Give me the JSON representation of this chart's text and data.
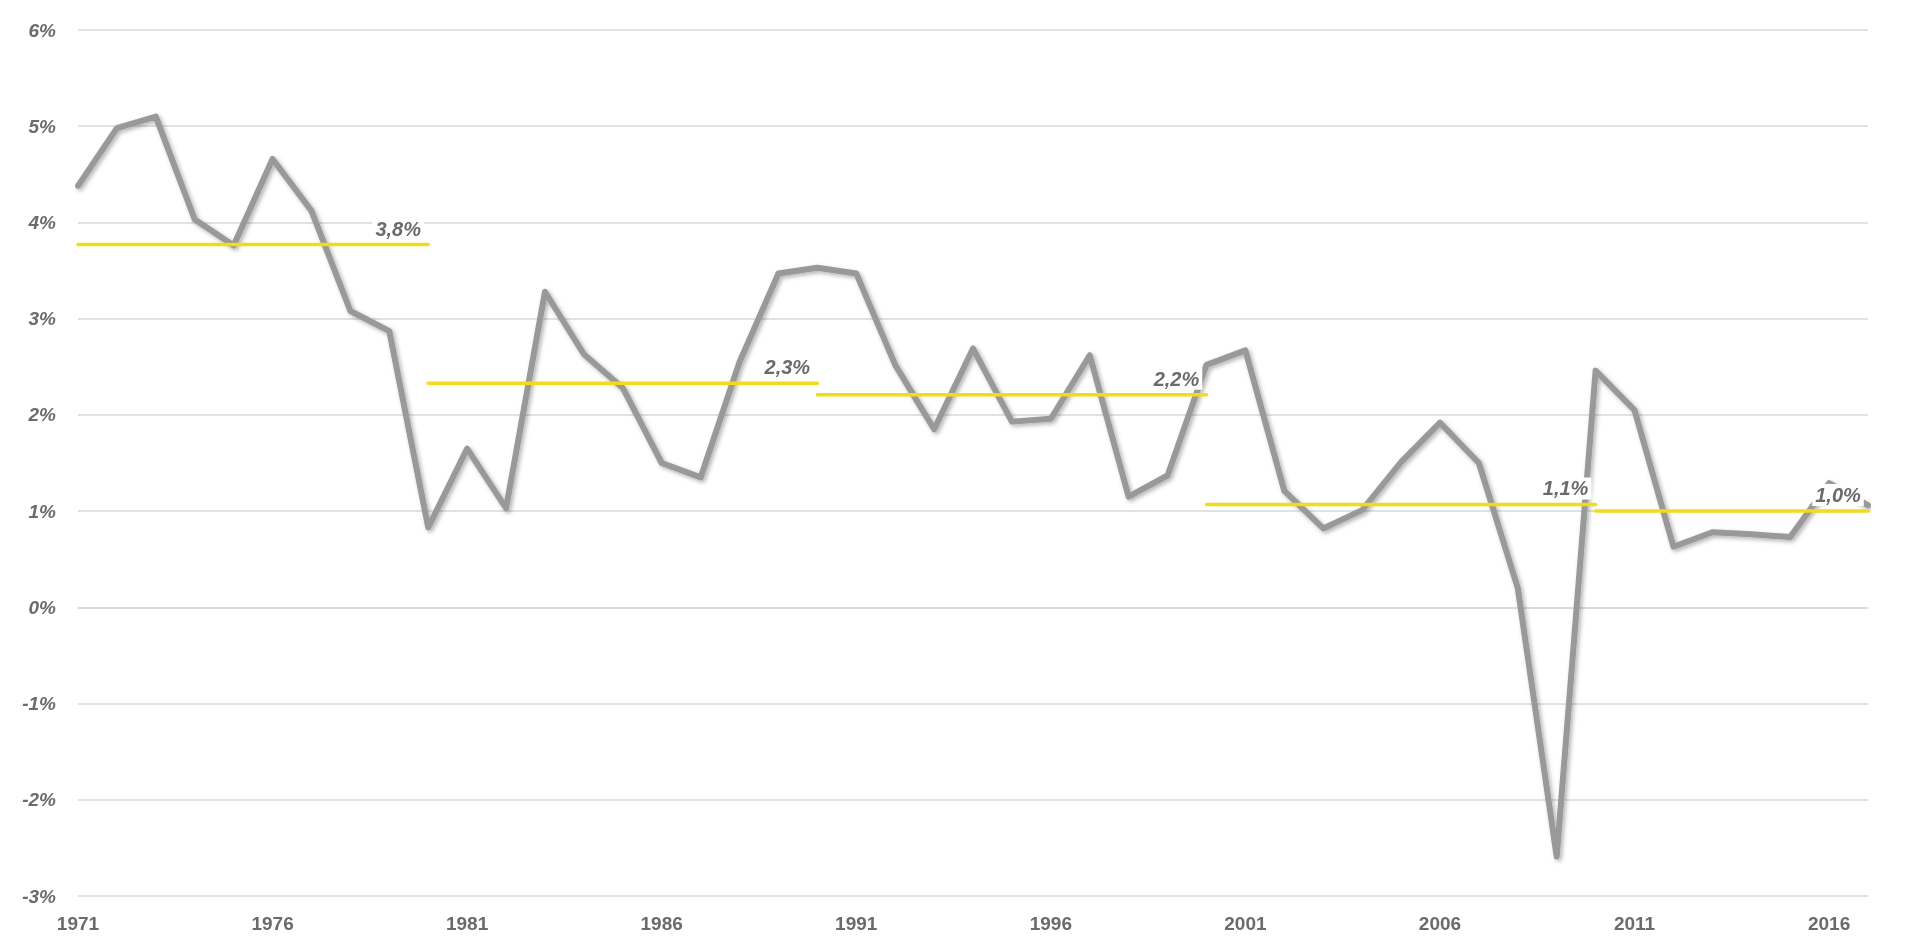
{
  "chart_data": {
    "type": "line",
    "x": [
      1971,
      1972,
      1973,
      1974,
      1975,
      1976,
      1977,
      1978,
      1979,
      1980,
      1981,
      1982,
      1983,
      1984,
      1985,
      1986,
      1987,
      1988,
      1989,
      1990,
      1991,
      1992,
      1993,
      1994,
      1995,
      1996,
      1997,
      1998,
      1999,
      2000,
      2001,
      2002,
      2003,
      2004,
      2005,
      2006,
      2007,
      2008,
      2009,
      2010,
      2011,
      2012,
      2013,
      2014,
      2015,
      2016,
      2017
    ],
    "xlim": [
      1971,
      2017
    ],
    "xticks": [
      1971,
      1976,
      1981,
      1986,
      1991,
      1996,
      2001,
      2006,
      2011,
      2016
    ],
    "ylim": [
      -3,
      6
    ],
    "yticks": [
      {
        "value": -3,
        "label": "-3%"
      },
      {
        "value": -2,
        "label": "-2%"
      },
      {
        "value": -1,
        "label": "-1%"
      },
      {
        "value": 0,
        "label": "0%"
      },
      {
        "value": 1,
        "label": "1%"
      },
      {
        "value": 2,
        "label": "2%"
      },
      {
        "value": 3,
        "label": "3%"
      },
      {
        "value": 4,
        "label": "4%"
      },
      {
        "value": 5,
        "label": "5%"
      },
      {
        "value": 6,
        "label": "6%"
      }
    ],
    "grid": "y",
    "marker": "none",
    "line_style": "solid",
    "series": [
      {
        "color": "#999999",
        "values": [
          4.38,
          4.98,
          5.1,
          4.03,
          3.76,
          4.66,
          4.12,
          3.08,
          2.87,
          0.83,
          1.65,
          1.03,
          3.28,
          2.63,
          2.28,
          1.5,
          1.35,
          2.55,
          3.47,
          3.53,
          3.47,
          2.52,
          1.85,
          2.69,
          1.93,
          1.96,
          2.62,
          1.15,
          1.37,
          2.52,
          2.67,
          1.21,
          0.82,
          1.01,
          1.51,
          1.92,
          1.5,
          0.2,
          -2.59,
          2.46,
          2.05,
          0.63,
          0.78,
          0.76,
          0.73,
          1.29,
          1.06
        ]
      },
      {
        "color": "#f2dc1a",
        "x": [
          1971,
          1980
        ],
        "values": [
          3.77,
          3.77
        ],
        "value_labels": [
          null,
          "3,8%"
        ]
      },
      {
        "color": "#f2dc1a",
        "x": [
          1980,
          1990
        ],
        "values": [
          2.33,
          2.33
        ],
        "value_labels": [
          null,
          "2,3%"
        ]
      },
      {
        "color": "#f2dc1a",
        "x": [
          1990,
          2000
        ],
        "values": [
          2.21,
          2.21
        ],
        "value_labels": [
          null,
          "2,2%"
        ]
      },
      {
        "color": "#f2dc1a",
        "x": [
          2000,
          2010
        ],
        "values": [
          1.07,
          1.07
        ],
        "value_labels": [
          null,
          "1,1%"
        ]
      },
      {
        "color": "#f2dc1a",
        "x": [
          2010,
          2017
        ],
        "values": [
          1.0,
          1.0
        ],
        "value_labels": [
          null,
          "1,0%"
        ]
      }
    ]
  }
}
